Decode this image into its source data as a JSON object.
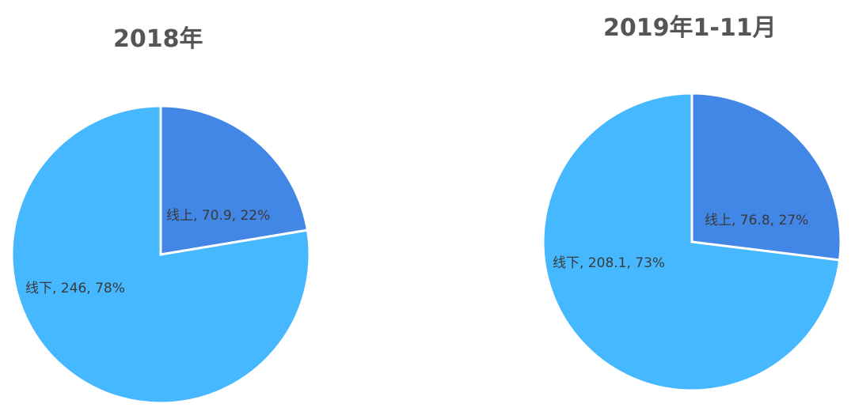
{
  "colors": {
    "online": "#4286e6",
    "offline": "#45b8ff",
    "title": "#555555",
    "label": "#3a3a3a"
  },
  "chart_data": [
    {
      "type": "pie",
      "title": "2018年",
      "slices": [
        {
          "label": "线上",
          "value": 70.9,
          "percent": 22,
          "text": "线上, 70.9, 22%",
          "color": "#4286e6"
        },
        {
          "label": "线下",
          "value": 246,
          "percent": 78,
          "text": "线下, 246, 78%",
          "color": "#45b8ff"
        }
      ],
      "start": "12-o'clock",
      "direction": "clockwise",
      "legend": "none"
    },
    {
      "type": "pie",
      "title": "2019年1-11月",
      "slices": [
        {
          "label": "线上",
          "value": 76.8,
          "percent": 27,
          "text": "线上, 76.8, 27%",
          "color": "#4286e6"
        },
        {
          "label": "线下",
          "value": 208.1,
          "percent": 73,
          "text": "线下, 208.1, 73%",
          "color": "#45b8ff"
        }
      ],
      "start": "12-o'clock",
      "direction": "clockwise",
      "legend": "none"
    }
  ]
}
